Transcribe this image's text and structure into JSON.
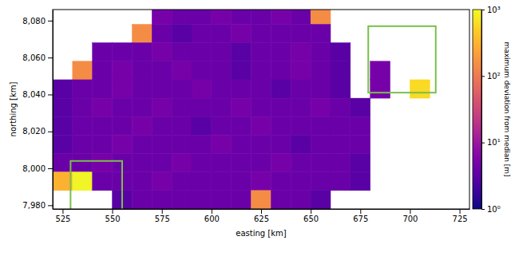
{
  "chart_data": {
    "type": "heatmap",
    "x_label": "easting [km]",
    "y_label": "northing [km]",
    "xlim": [
      520,
      730
    ],
    "ylim": [
      7978,
      8086
    ],
    "xticks": [
      525,
      550,
      575,
      600,
      625,
      650,
      675,
      700,
      725
    ],
    "yticks": [
      {
        "value": 7980,
        "label": "7,980"
      },
      {
        "value": 8000,
        "label": "8,000"
      },
      {
        "value": 8020,
        "label": "8,020"
      },
      {
        "value": 8040,
        "label": "8,040"
      },
      {
        "value": 8060,
        "label": "8,060"
      },
      {
        "value": 8080,
        "label": "8,080"
      }
    ],
    "x": [
      525,
      535,
      545,
      555,
      565,
      575,
      585,
      595,
      605,
      615,
      625,
      635,
      645,
      655,
      665,
      675,
      685,
      695,
      705,
      715,
      725
    ],
    "y": [
      8083,
      8073,
      8063,
      8053,
      8043,
      8033,
      8023,
      8013,
      8003,
      7993,
      7983
    ],
    "z": [
      [
        null,
        null,
        null,
        null,
        null,
        5,
        4,
        4,
        5,
        4,
        4,
        5,
        4,
        150,
        null,
        null,
        null,
        null,
        null,
        null,
        null
      ],
      [
        null,
        null,
        null,
        null,
        150,
        4,
        3,
        4,
        4,
        5,
        4,
        4,
        4,
        4,
        null,
        null,
        null,
        null,
        null,
        null,
        null
      ],
      [
        null,
        null,
        4,
        4,
        4,
        5,
        4,
        4,
        4,
        3,
        4,
        4,
        5,
        4,
        3,
        null,
        null,
        null,
        null,
        null,
        null
      ],
      [
        null,
        150,
        4,
        5,
        4,
        4,
        5,
        4,
        4,
        3,
        4,
        4,
        5,
        4,
        3,
        null,
        5,
        null,
        null,
        null,
        null
      ],
      [
        3,
        4,
        4,
        5,
        4,
        4,
        4,
        5,
        4,
        4,
        4,
        3,
        4,
        4,
        3,
        null,
        5,
        null,
        600,
        null,
        null
      ],
      [
        3,
        4,
        5,
        4,
        4,
        5,
        4,
        4,
        4,
        5,
        4,
        4,
        4,
        5,
        4,
        3,
        null,
        null,
        null,
        null,
        null
      ],
      [
        3,
        4,
        4,
        4,
        5,
        4,
        4,
        3,
        4,
        4,
        5,
        4,
        4,
        4,
        4,
        4,
        null,
        null,
        null,
        null,
        null
      ],
      [
        3,
        4,
        4,
        5,
        4,
        4,
        4,
        4,
        5,
        4,
        4,
        4,
        3,
        4,
        4,
        4,
        null,
        null,
        null,
        null,
        null
      ],
      [
        4,
        4,
        5,
        4,
        4,
        4,
        5,
        4,
        4,
        4,
        4,
        5,
        4,
        4,
        4,
        3,
        null,
        null,
        null,
        null,
        null
      ],
      [
        300,
        900,
        4,
        4,
        4,
        5,
        4,
        4,
        4,
        4,
        5,
        4,
        4,
        4,
        4,
        3,
        null,
        null,
        null,
        null,
        null
      ],
      [
        null,
        null,
        null,
        3,
        4,
        4,
        4,
        4,
        4,
        4,
        150,
        4,
        4,
        3,
        null,
        null,
        null,
        null,
        null,
        null,
        null
      ]
    ],
    "color": "plasma",
    "colorbar": {
      "label": "maximum deviation from median [m]",
      "lim": [
        1,
        1000
      ],
      "log": true,
      "ticks": [
        {
          "value": 1,
          "label": "10⁰"
        },
        {
          "value": 10,
          "label": "10¹"
        },
        {
          "value": 100,
          "label": "10²"
        },
        {
          "value": 1000,
          "label": "10³"
        }
      ]
    },
    "boxes": [
      {
        "x": [
          529,
          555
        ],
        "y": [
          7977,
          8004
        ],
        "color": "#78c04a"
      },
      {
        "x": [
          679,
          713
        ],
        "y": [
          8041,
          8077
        ],
        "color": "#78c04a"
      }
    ]
  }
}
